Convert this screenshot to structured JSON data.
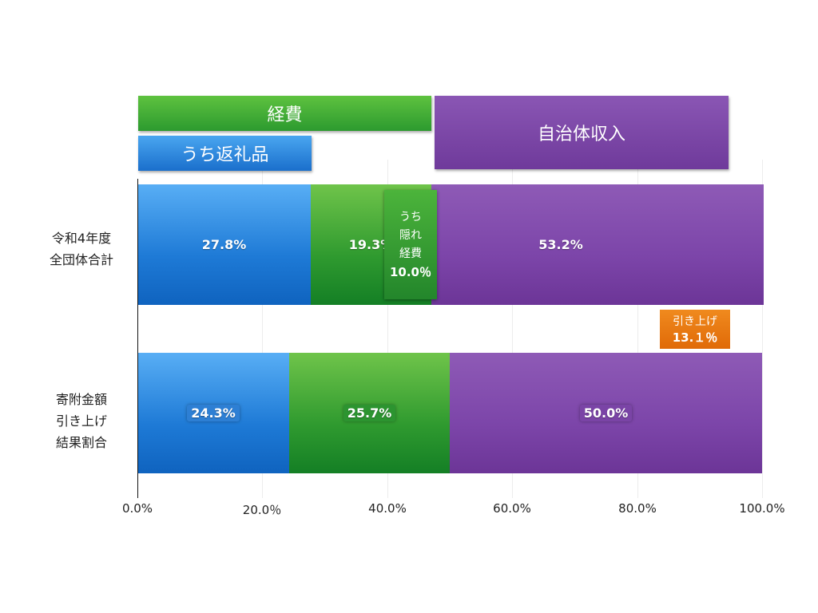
{
  "chart_data": {
    "type": "bar",
    "orientation": "horizontal",
    "stacked": true,
    "title": "",
    "xlabel": "",
    "ylabel": "",
    "xlim": [
      0,
      100
    ],
    "x_ticks": [
      "0.0%",
      "20.0％",
      "40.0%",
      "60.0%",
      "80.0%",
      "100.0%"
    ],
    "categories": [
      "令和4年度\n全団体合計",
      "寄附金額\n引き上げ\n結果割合"
    ],
    "series": [
      {
        "name": "うち返礼品",
        "color": "#2a86e0",
        "values": [
          27.8,
          24.3
        ],
        "labels": [
          "27.8%",
          "24.3%"
        ]
      },
      {
        "name": "経費",
        "color": "#2f9a2f",
        "values": [
          19.3,
          25.7
        ],
        "labels": [
          "19.3%",
          "25.7%"
        ]
      },
      {
        "name": "自治体収入",
        "color": "#7b45a8",
        "values": [
          53.2,
          50.0
        ],
        "labels": [
          "53.2%",
          "50.0%"
        ]
      }
    ],
    "legend": {
      "expenses": "経費",
      "gifts": "うち返礼品",
      "municipal": "自治体収入"
    },
    "annotations": {
      "hidden_expenses": {
        "lines": [
          "うち",
          "隠れ",
          "経費"
        ],
        "value": "10.0％"
      },
      "raise": {
        "label": "引き上げ",
        "value": "13.１％"
      }
    },
    "grid": true
  }
}
